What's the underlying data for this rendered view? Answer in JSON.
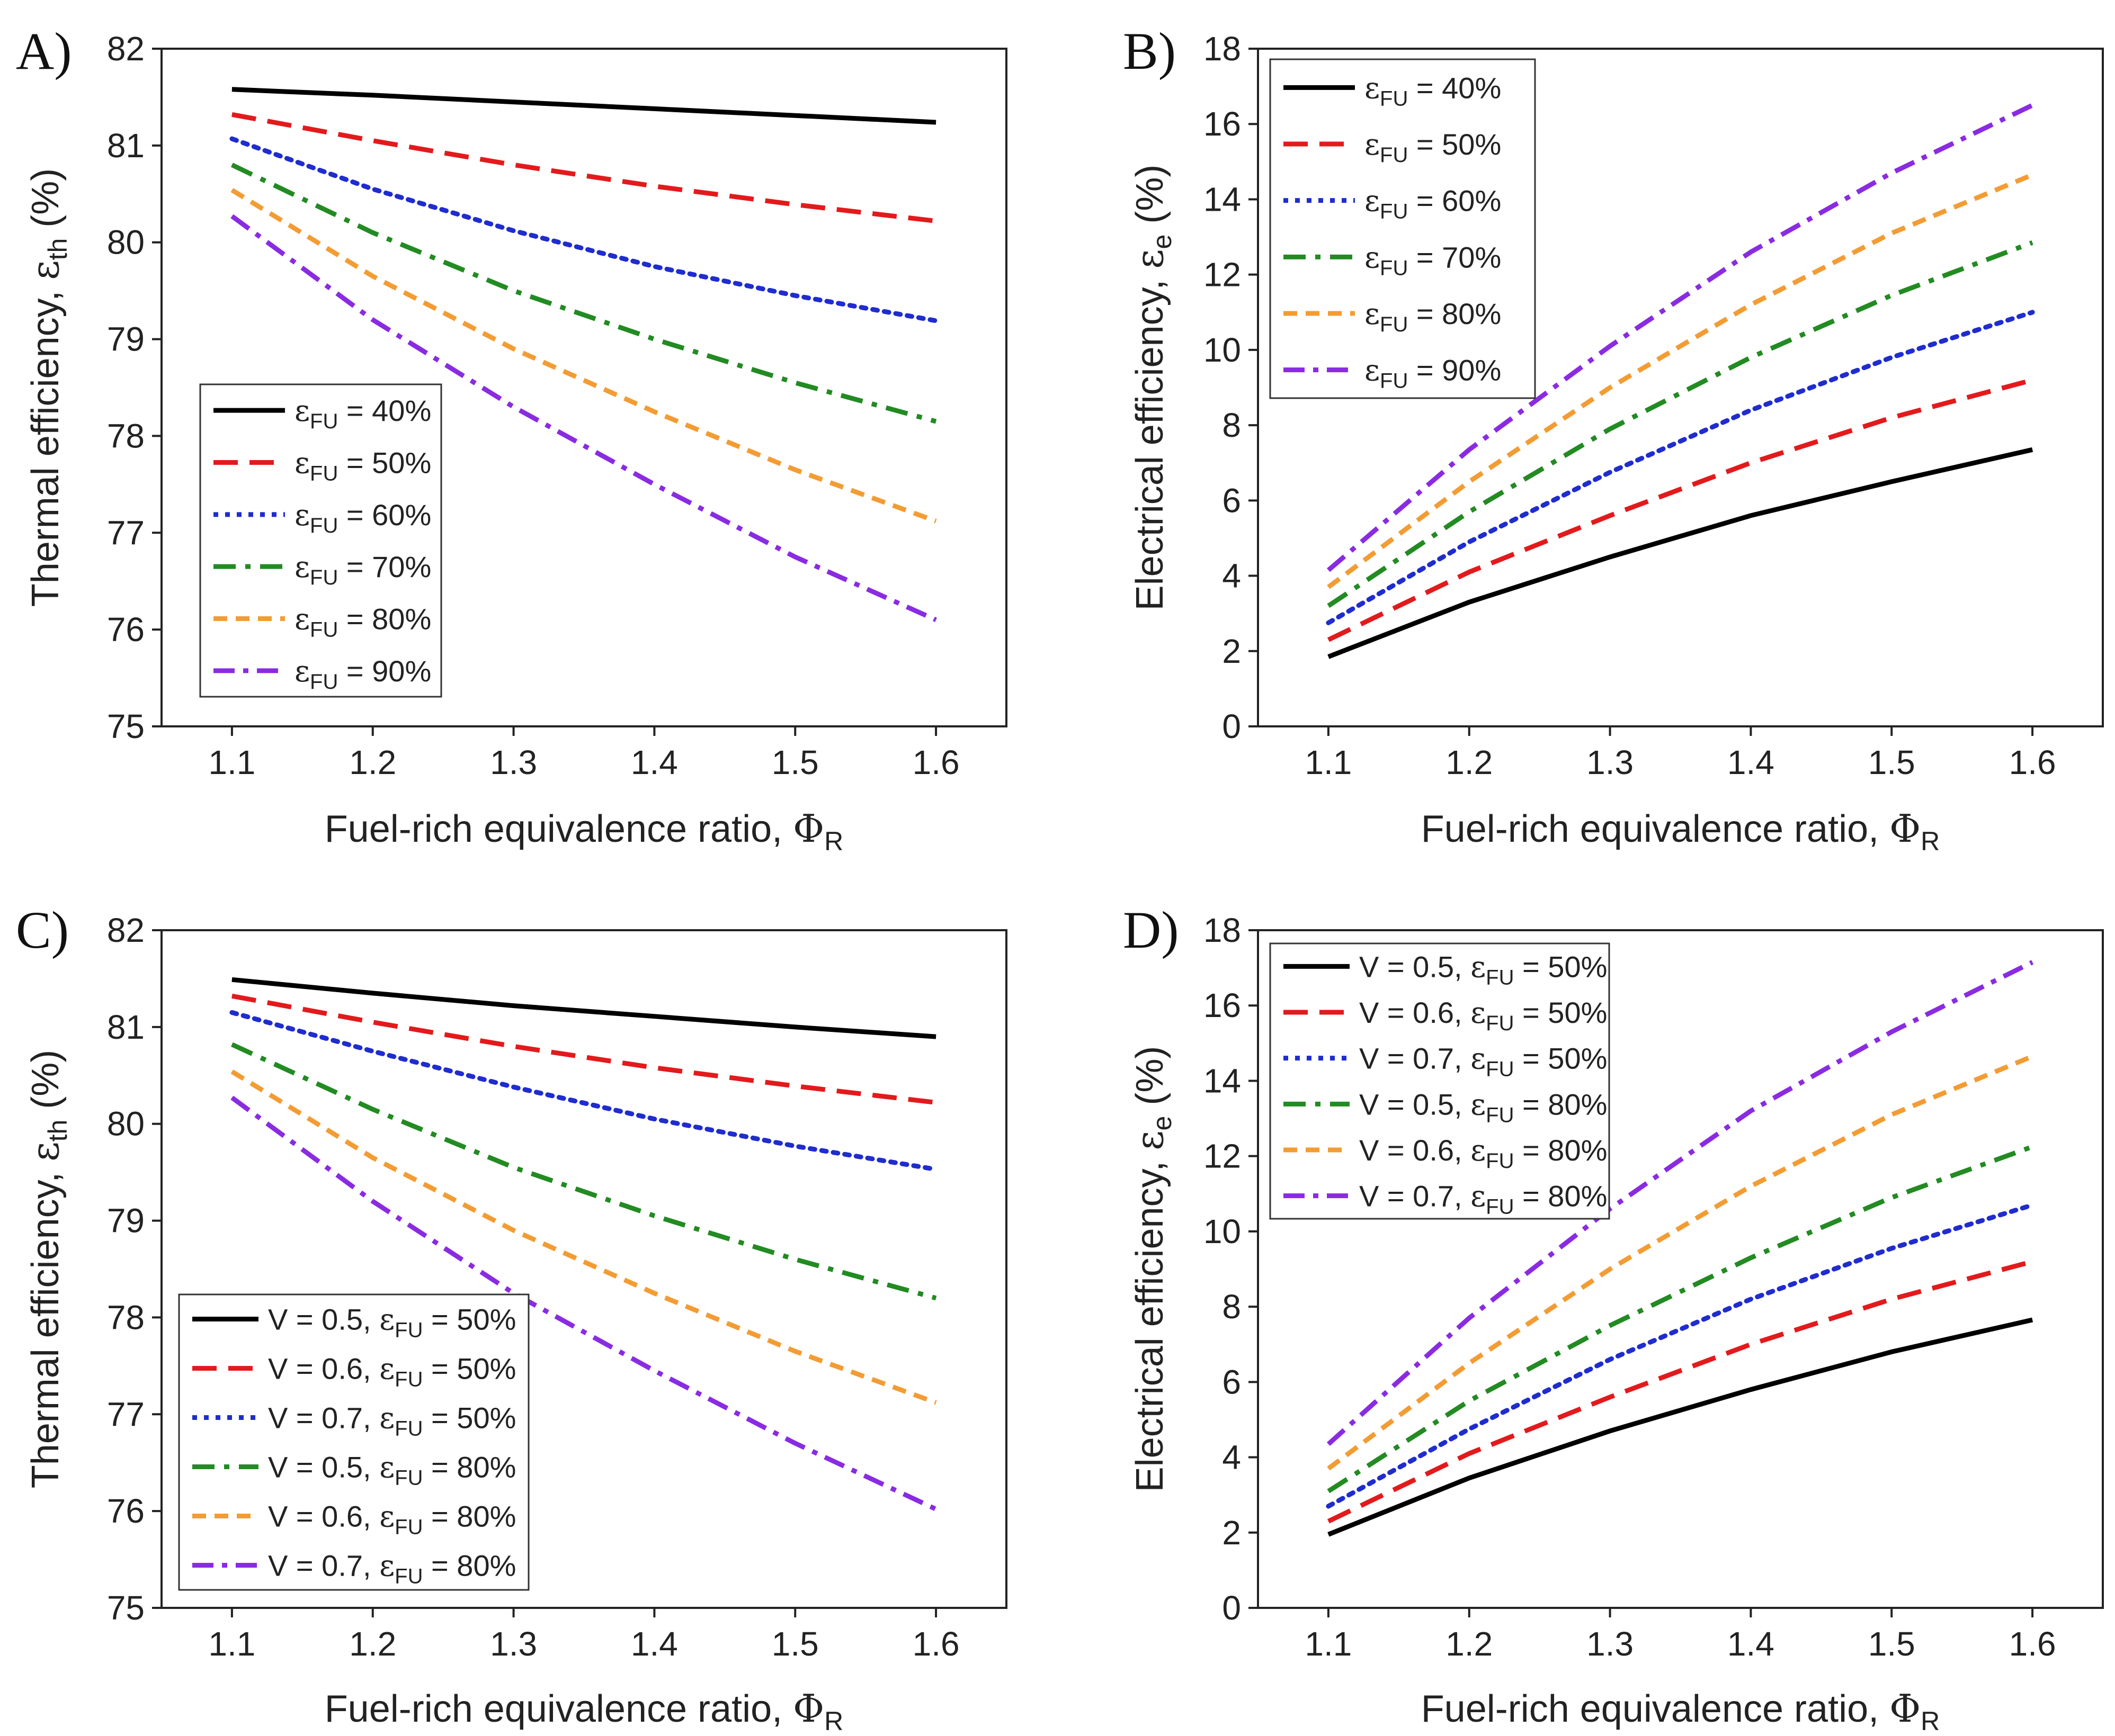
{
  "figure": {
    "description_units": "percent"
  },
  "symbols": {
    "eps": "ε",
    "Phi": "Φ"
  },
  "colors": {
    "black": "#000000",
    "red": "#e31a1c",
    "blue": "#1f2ccf",
    "green": "#228b22",
    "orange": "#f39c33",
    "purple": "#8a2be2",
    "axis": "#222222"
  },
  "chart_data": [
    {
      "panel": "A)",
      "type": "line",
      "xlabel": "Fuel-rich equivalence ratio, ",
      "xlabel_symbol": "Φ",
      "xlabel_sub": "R",
      "ylabel": "Thermal efficiency, ",
      "ylabel_symbol": "ε",
      "ylabel_sub": "th",
      "ylabel_suffix": " (%)",
      "xlim": [
        1.05,
        1.65
      ],
      "ylim": [
        75,
        82
      ],
      "xticks": [
        "1.1",
        "1.2",
        "1.3",
        "1.4",
        "1.5",
        "1.6"
      ],
      "yticks": [
        "75",
        "76",
        "77",
        "78",
        "79",
        "80",
        "81",
        "82"
      ],
      "legend_position": "bottom-left",
      "x": [
        1.1,
        1.2,
        1.3,
        1.4,
        1.5,
        1.6
      ],
      "series": [
        {
          "name": "εFU = 40%",
          "legend_pre": "ε",
          "legend_sub": "FU",
          "legend_post": " = 40%",
          "color": "black",
          "dash": "solid",
          "values": [
            81.58,
            81.52,
            81.45,
            81.38,
            81.31,
            81.24
          ]
        },
        {
          "name": "εFU = 50%",
          "legend_pre": "ε",
          "legend_sub": "FU",
          "legend_post": " = 50%",
          "color": "red",
          "dash": "dash",
          "values": [
            81.32,
            81.05,
            80.8,
            80.58,
            80.39,
            80.22
          ]
        },
        {
          "name": "εFU = 60%",
          "legend_pre": "ε",
          "legend_sub": "FU",
          "legend_post": " = 60%",
          "color": "blue",
          "dash": "dot",
          "values": [
            81.07,
            80.55,
            80.12,
            79.75,
            79.45,
            79.19
          ]
        },
        {
          "name": "εFU = 70%",
          "legend_pre": "ε",
          "legend_sub": "FU",
          "legend_post": " = 70%",
          "color": "green",
          "dash": "dashdot",
          "values": [
            80.8,
            80.1,
            79.5,
            79.0,
            78.55,
            78.15
          ]
        },
        {
          "name": "εFU = 80%",
          "legend_pre": "ε",
          "legend_sub": "FU",
          "legend_post": " = 80%",
          "color": "orange",
          "dash": "shortdash",
          "values": [
            80.54,
            79.65,
            78.9,
            78.25,
            77.65,
            77.12
          ]
        },
        {
          "name": "εFU = 90%",
          "legend_pre": "ε",
          "legend_sub": "FU",
          "legend_post": " = 90%",
          "color": "purple",
          "dash": "dashdot2",
          "values": [
            80.27,
            79.2,
            78.3,
            77.5,
            76.75,
            76.1
          ]
        }
      ]
    },
    {
      "panel": "B)",
      "type": "line",
      "xlabel": "Fuel-rich equivalence ratio, ",
      "xlabel_symbol": "Φ",
      "xlabel_sub": "R",
      "ylabel": "Electrical efficiency, ",
      "ylabel_symbol": "ε",
      "ylabel_sub": "e",
      "ylabel_suffix": " (%)",
      "xlim": [
        1.05,
        1.65
      ],
      "ylim": [
        0,
        18
      ],
      "xticks": [
        "1.1",
        "1.2",
        "1.3",
        "1.4",
        "1.5",
        "1.6"
      ],
      "yticks": [
        "0",
        "2",
        "4",
        "6",
        "8",
        "10",
        "12",
        "14",
        "16",
        "18"
      ],
      "legend_position": "top-left",
      "x": [
        1.1,
        1.2,
        1.3,
        1.4,
        1.5,
        1.6
      ],
      "series": [
        {
          "name": "εFU = 40%",
          "legend_pre": "ε",
          "legend_sub": "FU",
          "legend_post": " = 40%",
          "color": "black",
          "dash": "solid",
          "values": [
            1.85,
            3.3,
            4.5,
            5.6,
            6.5,
            7.35
          ]
        },
        {
          "name": "εFU = 50%",
          "legend_pre": "ε",
          "legend_sub": "FU",
          "legend_post": " = 50%",
          "color": "red",
          "dash": "dash",
          "values": [
            2.3,
            4.1,
            5.6,
            7.0,
            8.2,
            9.2
          ]
        },
        {
          "name": "εFU = 60%",
          "legend_pre": "ε",
          "legend_sub": "FU",
          "legend_post": " = 60%",
          "color": "blue",
          "dash": "dot",
          "values": [
            2.75,
            4.9,
            6.75,
            8.4,
            9.8,
            11.0
          ]
        },
        {
          "name": "εFU = 70%",
          "legend_pre": "ε",
          "legend_sub": "FU",
          "legend_post": " = 70%",
          "color": "green",
          "dash": "dashdot",
          "values": [
            3.2,
            5.7,
            7.9,
            9.8,
            11.45,
            12.85
          ]
        },
        {
          "name": "εFU = 80%",
          "legend_pre": "ε",
          "legend_sub": "FU",
          "legend_post": " = 80%",
          "color": "orange",
          "dash": "shortdash",
          "values": [
            3.7,
            6.5,
            9.0,
            11.2,
            13.1,
            14.65
          ]
        },
        {
          "name": "εFU = 90%",
          "legend_pre": "ε",
          "legend_sub": "FU",
          "legend_post": " = 90%",
          "color": "purple",
          "dash": "dashdot2",
          "values": [
            4.15,
            7.35,
            10.1,
            12.6,
            14.7,
            16.5
          ]
        }
      ]
    },
    {
      "panel": "C)",
      "type": "line",
      "xlabel": "Fuel-rich equivalence ratio, ",
      "xlabel_symbol": "Φ",
      "xlabel_sub": "R",
      "ylabel": "Thermal efficiency, ",
      "ylabel_symbol": "ε",
      "ylabel_sub": "th",
      "ylabel_suffix": " (%)",
      "xlim": [
        1.05,
        1.65
      ],
      "ylim": [
        75,
        82
      ],
      "xticks": [
        "1.1",
        "1.2",
        "1.3",
        "1.4",
        "1.5",
        "1.6"
      ],
      "yticks": [
        "75",
        "76",
        "77",
        "78",
        "79",
        "80",
        "81",
        "82"
      ],
      "legend_position": "bottom-left",
      "x": [
        1.1,
        1.2,
        1.3,
        1.4,
        1.5,
        1.6
      ],
      "series": [
        {
          "name": "V = 0.5, εFU = 50%",
          "legend_pre": "V = 0.5, ε",
          "legend_sub": "FU",
          "legend_post": " = 50%",
          "color": "black",
          "dash": "solid",
          "values": [
            81.49,
            81.35,
            81.22,
            81.11,
            81.0,
            80.9
          ]
        },
        {
          "name": "V = 0.6, εFU = 50%",
          "legend_pre": "V = 0.6, ε",
          "legend_sub": "FU",
          "legend_post": " = 50%",
          "color": "red",
          "dash": "dash",
          "values": [
            81.32,
            81.05,
            80.8,
            80.58,
            80.39,
            80.22
          ]
        },
        {
          "name": "V = 0.7, εFU = 50%",
          "legend_pre": "V = 0.7, ε",
          "legend_sub": "FU",
          "legend_post": " = 50%",
          "color": "blue",
          "dash": "dot",
          "values": [
            81.15,
            80.75,
            80.38,
            80.05,
            79.77,
            79.53
          ]
        },
        {
          "name": "V = 0.5, εFU = 80%",
          "legend_pre": "V = 0.5, ε",
          "legend_sub": "FU",
          "legend_post": " = 80%",
          "color": "green",
          "dash": "dashdot",
          "values": [
            80.82,
            80.15,
            79.55,
            79.05,
            78.6,
            78.2
          ]
        },
        {
          "name": "V = 0.6, εFU = 80%",
          "legend_pre": "V = 0.6, ε",
          "legend_sub": "FU",
          "legend_post": " = 80%",
          "color": "orange",
          "dash": "shortdash",
          "values": [
            80.54,
            79.65,
            78.9,
            78.25,
            77.65,
            77.12
          ]
        },
        {
          "name": "V = 0.7, εFU = 80%",
          "legend_pre": "V = 0.7, ε",
          "legend_sub": "FU",
          "legend_post": " = 80%",
          "color": "purple",
          "dash": "dashdot2",
          "values": [
            80.27,
            79.2,
            78.25,
            77.45,
            76.7,
            76.02
          ]
        }
      ]
    },
    {
      "panel": "D)",
      "type": "line",
      "xlabel": "Fuel-rich equivalence ratio, ",
      "xlabel_symbol": "Φ",
      "xlabel_sub": "R",
      "ylabel": "Electrical efficiency, ",
      "ylabel_symbol": "ε",
      "ylabel_sub": "e",
      "ylabel_suffix": " (%)",
      "xlim": [
        1.05,
        1.65
      ],
      "ylim": [
        0,
        18
      ],
      "xticks": [
        "1.1",
        "1.2",
        "1.3",
        "1.4",
        "1.5",
        "1.6"
      ],
      "yticks": [
        "0",
        "2",
        "4",
        "6",
        "8",
        "10",
        "12",
        "14",
        "16",
        "18"
      ],
      "legend_position": "top-left",
      "x": [
        1.1,
        1.2,
        1.3,
        1.4,
        1.5,
        1.6
      ],
      "series": [
        {
          "name": "V = 0.5, εFU = 50%",
          "legend_pre": "V = 0.5, ε",
          "legend_sub": "FU",
          "legend_post": " = 50%",
          "color": "black",
          "dash": "solid",
          "values": [
            1.95,
            3.45,
            4.7,
            5.8,
            6.8,
            7.65
          ]
        },
        {
          "name": "V = 0.6, εFU = 50%",
          "legend_pre": "V = 0.6, ε",
          "legend_sub": "FU",
          "legend_post": " = 50%",
          "color": "red",
          "dash": "dash",
          "values": [
            2.3,
            4.1,
            5.6,
            7.0,
            8.2,
            9.2
          ]
        },
        {
          "name": "V = 0.7, εFU = 50%",
          "legend_pre": "V = 0.7, ε",
          "legend_sub": "FU",
          "legend_post": " = 50%",
          "color": "blue",
          "dash": "dot",
          "values": [
            2.7,
            4.75,
            6.6,
            8.2,
            9.55,
            10.7
          ]
        },
        {
          "name": "V = 0.5, εFU = 80%",
          "legend_pre": "V = 0.5, ε",
          "legend_sub": "FU",
          "legend_post": " = 80%",
          "color": "green",
          "dash": "dashdot",
          "values": [
            3.1,
            5.5,
            7.5,
            9.3,
            10.9,
            12.25
          ]
        },
        {
          "name": "V = 0.6, εFU = 80%",
          "legend_pre": "V = 0.6, ε",
          "legend_sub": "FU",
          "legend_post": " = 80%",
          "color": "orange",
          "dash": "shortdash",
          "values": [
            3.7,
            6.5,
            9.0,
            11.2,
            13.1,
            14.65
          ]
        },
        {
          "name": "V = 0.7, εFU = 80%",
          "legend_pre": "V = 0.7, ε",
          "legend_sub": "FU",
          "legend_post": " = 80%",
          "color": "purple",
          "dash": "dashdot2",
          "values": [
            4.35,
            7.7,
            10.6,
            13.2,
            15.3,
            17.15
          ]
        }
      ]
    }
  ]
}
